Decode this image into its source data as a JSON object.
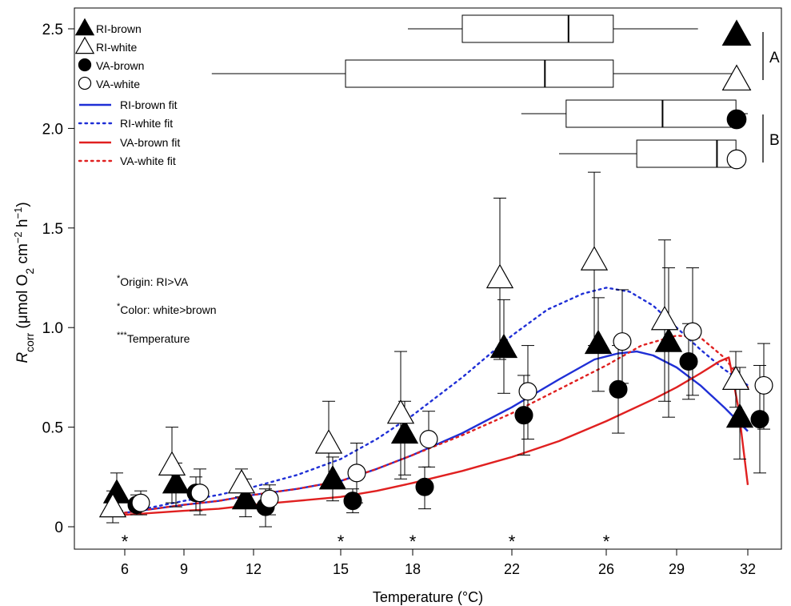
{
  "chart_data": {
    "type": "scatter",
    "xlabel": "Temperature (°C)",
    "ylabel": {
      "prefix": "R",
      "prefix_sub": "corr",
      "body": " (μmol O",
      "body_sub": "2",
      "body2": " cm",
      "exp1": "−2",
      "body3": " h",
      "exp2": "−1",
      "close": ")"
    },
    "x_ticks": [
      "6",
      "9",
      "12",
      "15",
      "18",
      "22",
      "26",
      "29",
      "32"
    ],
    "y_ticks": [
      "0",
      "0.5",
      "1.0",
      "1.5",
      "2.0",
      "2.5"
    ],
    "ylim": [
      -0.12,
      2.62
    ],
    "grid": false,
    "legend_position": "top-left",
    "series": [
      {
        "name": "RI-brown",
        "marker": "triangle-filled",
        "points": [
          {
            "t": "6",
            "y": 0.17,
            "lo": 0.08,
            "hi": 0.27
          },
          {
            "t": "9",
            "y": 0.22,
            "lo": 0.1,
            "hi": 0.32
          },
          {
            "t": "12",
            "y": 0.14,
            "lo": 0.05,
            "hi": 0.24
          },
          {
            "t": "15",
            "y": 0.24,
            "lo": 0.13,
            "hi": 0.35
          },
          {
            "t": "18",
            "y": 0.47,
            "lo": 0.26,
            "hi": 0.63
          },
          {
            "t": "22",
            "y": 0.9,
            "lo": 0.67,
            "hi": 1.14
          },
          {
            "t": "26",
            "y": 0.92,
            "lo": 0.68,
            "hi": 1.15
          },
          {
            "t": "29",
            "y": 0.93,
            "lo": 0.55,
            "hi": 1.3
          },
          {
            "t": "32",
            "y": 0.55,
            "lo": 0.34,
            "hi": 0.8
          }
        ]
      },
      {
        "name": "RI-white",
        "marker": "triangle-open",
        "points": [
          {
            "t": "6",
            "y": 0.1,
            "lo": 0.02,
            "hi": 0.18
          },
          {
            "t": "9",
            "y": 0.31,
            "lo": 0.12,
            "hi": 0.5
          },
          {
            "t": "12",
            "y": 0.22,
            "lo": 0.15,
            "hi": 0.29
          },
          {
            "t": "15",
            "y": 0.42,
            "lo": 0.21,
            "hi": 0.63
          },
          {
            "t": "18",
            "y": 0.57,
            "lo": 0.24,
            "hi": 0.88
          },
          {
            "t": "22",
            "y": 1.25,
            "lo": 0.84,
            "hi": 1.65
          },
          {
            "t": "26",
            "y": 1.34,
            "lo": 0.91,
            "hi": 1.78
          },
          {
            "t": "29",
            "y": 1.04,
            "lo": 0.63,
            "hi": 1.44
          },
          {
            "t": "32",
            "y": 0.74,
            "lo": 0.6,
            "hi": 0.88
          }
        ]
      },
      {
        "name": "VA-brown",
        "marker": "circle-filled",
        "points": [
          {
            "t": "6",
            "y": 0.11,
            "lo": 0.06,
            "hi": 0.16
          },
          {
            "t": "9",
            "y": 0.17,
            "lo": 0.08,
            "hi": 0.25
          },
          {
            "t": "12",
            "y": 0.1,
            "lo": 0.0,
            "hi": 0.19
          },
          {
            "t": "15",
            "y": 0.13,
            "lo": 0.07,
            "hi": 0.19
          },
          {
            "t": "18",
            "y": 0.2,
            "lo": 0.09,
            "hi": 0.3
          },
          {
            "t": "22",
            "y": 0.56,
            "lo": 0.36,
            "hi": 0.76
          },
          {
            "t": "26",
            "y": 0.69,
            "lo": 0.47,
            "hi": 0.91
          },
          {
            "t": "29",
            "y": 0.83,
            "lo": 0.64,
            "hi": 1.02
          },
          {
            "t": "32",
            "y": 0.54,
            "lo": 0.27,
            "hi": 0.81
          }
        ]
      },
      {
        "name": "VA-white",
        "marker": "circle-open",
        "points": [
          {
            "t": "6",
            "y": 0.12,
            "lo": 0.06,
            "hi": 0.18
          },
          {
            "t": "9",
            "y": 0.17,
            "lo": 0.06,
            "hi": 0.29
          },
          {
            "t": "12",
            "y": 0.14,
            "lo": 0.06,
            "hi": 0.21
          },
          {
            "t": "15",
            "y": 0.27,
            "lo": 0.12,
            "hi": 0.42
          },
          {
            "t": "18",
            "y": 0.44,
            "lo": 0.3,
            "hi": 0.58
          },
          {
            "t": "22",
            "y": 0.68,
            "lo": 0.44,
            "hi": 0.91
          },
          {
            "t": "26",
            "y": 0.93,
            "lo": 0.72,
            "hi": 1.19
          },
          {
            "t": "29",
            "y": 0.98,
            "lo": 0.66,
            "hi": 1.3
          },
          {
            "t": "32",
            "y": 0.71,
            "lo": 0.49,
            "hi": 0.92
          }
        ]
      }
    ],
    "fits": [
      {
        "name": "RI-brown fit",
        "color": "#1f2fd6",
        "dash": "solid",
        "t": [
          6,
          7.5,
          9,
          10.5,
          12,
          13.5,
          15,
          16.5,
          18,
          20,
          22,
          24,
          25.5,
          26.5,
          27.3,
          28,
          29,
          30,
          31,
          31.5,
          32
        ],
        "y": [
          0.07,
          0.09,
          0.11,
          0.13,
          0.16,
          0.19,
          0.23,
          0.29,
          0.36,
          0.47,
          0.6,
          0.74,
          0.84,
          0.87,
          0.88,
          0.86,
          0.8,
          0.71,
          0.6,
          0.54,
          0.48
        ]
      },
      {
        "name": "RI-white fit",
        "color": "#1f2fd6",
        "dash": "dotted",
        "t": [
          6,
          7.5,
          9,
          10.5,
          12,
          13.5,
          15,
          16.5,
          18,
          20,
          22,
          23.5,
          25,
          26,
          27,
          28,
          29,
          30,
          31,
          32
        ],
        "y": [
          0.07,
          0.1,
          0.13,
          0.16,
          0.2,
          0.26,
          0.34,
          0.44,
          0.56,
          0.75,
          0.96,
          1.09,
          1.17,
          1.2,
          1.18,
          1.11,
          1.0,
          0.89,
          0.79,
          0.71
        ]
      },
      {
        "name": "VA-brown fit",
        "color": "#e02020",
        "dash": "solid",
        "t": [
          6,
          7.5,
          9,
          10.5,
          12,
          13.5,
          15,
          16.5,
          18,
          20,
          22,
          24,
          26,
          28,
          29,
          30,
          30.8,
          31.2,
          31.6,
          32
        ],
        "y": [
          0.06,
          0.07,
          0.08,
          0.09,
          0.11,
          0.13,
          0.15,
          0.18,
          0.22,
          0.28,
          0.35,
          0.43,
          0.53,
          0.64,
          0.7,
          0.77,
          0.83,
          0.85,
          0.6,
          0.21
        ]
      },
      {
        "name": "VA-white fit",
        "color": "#e02020",
        "dash": "dotted",
        "t": [
          6,
          7.5,
          9,
          10.5,
          12,
          13.5,
          15,
          16.5,
          18,
          20,
          22,
          24,
          26,
          27.5,
          29,
          30,
          31,
          32
        ],
        "y": [
          0.07,
          0.09,
          0.11,
          0.13,
          0.16,
          0.19,
          0.23,
          0.29,
          0.36,
          0.46,
          0.57,
          0.69,
          0.81,
          0.91,
          0.96,
          0.95,
          0.85,
          0.7
        ]
      }
    ],
    "boxplots": [
      {
        "group": "RI-brown",
        "marker": "triangle-filled",
        "min": 17.8,
        "q1": 20.0,
        "median": 24.4,
        "q3": 26.3,
        "max": 29.9
      },
      {
        "group": "RI-white",
        "marker": "triangle-open",
        "min": 10.2,
        "q1": 15.2,
        "median": 23.4,
        "q3": 26.3,
        "max": 31.6
      },
      {
        "group": "VA-brown",
        "marker": "circle-filled",
        "min": 22.4,
        "q1": 24.3,
        "median": 28.4,
        "q3": 31.5,
        "max": 32.0
      },
      {
        "group": "VA-white",
        "marker": "circle-open",
        "min": 24.0,
        "q1": 27.3,
        "median": 30.7,
        "q3": 31.5,
        "max": 31.7
      }
    ],
    "group_brackets": [
      {
        "label": "A",
        "groups": [
          "RI-brown",
          "RI-white"
        ]
      },
      {
        "label": "B",
        "groups": [
          "VA-brown",
          "VA-white"
        ]
      }
    ],
    "significance_markers": [
      {
        "t": "6",
        "label": "*"
      },
      {
        "t": "15",
        "label": "*"
      },
      {
        "t": "18",
        "label": "*"
      },
      {
        "t": "22",
        "label": "*"
      },
      {
        "t": "26",
        "label": "*"
      }
    ],
    "annotations": [
      {
        "stars": "*",
        "text": "Origin: RI>VA"
      },
      {
        "stars": "*",
        "text": "Color: white>brown"
      },
      {
        "stars": "***",
        "text": "Temperature"
      }
    ]
  }
}
